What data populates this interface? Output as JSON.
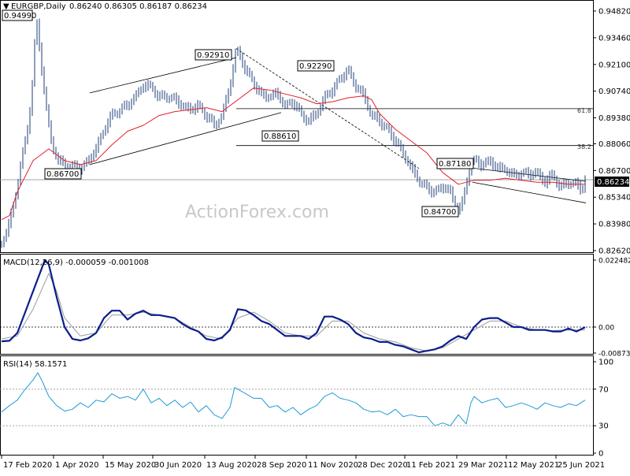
{
  "header": {
    "symbol": "EURGBP,Daily",
    "ohlc": "0.86240 0.86305 0.86187 0.86234"
  },
  "watermark": "ActionForex.com",
  "chart_data": [
    {
      "type": "candlestick",
      "ylim": [
        0.8262,
        0.9482
      ],
      "y_ticks": [
        "0.94820",
        "0.93460",
        "0.92100",
        "0.90740",
        "0.89380",
        "0.88060",
        "0.86700",
        "0.85340",
        "0.83980",
        "0.82620"
      ],
      "x_ticks": [
        "17 Feb 2020",
        "1 Apr 2020",
        "15 May 2020",
        "30 Jun 2020",
        "13 Aug 2020",
        "28 Sep 2020",
        "11 Nov 2020",
        "28 Dec 2020",
        "11 Feb 2021",
        "29 Mar 2021",
        "12 May 2021",
        "25 Jun 2021"
      ],
      "last_price": "0.86234",
      "series": [
        {
          "name": "price",
          "color": "#1f3f7a",
          "x": [
            0,
            8,
            16,
            24,
            32,
            38,
            44,
            48,
            52,
            58,
            64,
            72,
            80,
            90,
            100,
            110,
            120,
            130,
            140,
            150,
            160,
            170,
            180,
            190,
            200,
            210,
            220,
            230,
            240,
            250,
            260,
            270,
            280,
            290,
            298,
            302,
            310,
            320,
            330,
            340,
            350,
            360,
            370,
            380,
            390,
            400,
            410,
            420,
            430,
            440,
            450,
            460,
            470,
            480,
            490,
            500,
            510,
            520,
            530,
            540,
            550,
            560,
            570,
            575,
            580,
            586,
            590,
            596,
            600,
            610,
            620,
            630,
            640,
            650,
            660,
            670,
            680,
            690,
            700,
            710,
            720,
            730,
            737,
            741
          ],
          "y": [
            0.83,
            0.838,
            0.85,
            0.87,
            0.885,
            0.905,
            0.945,
            0.93,
            0.915,
            0.895,
            0.88,
            0.872,
            0.87,
            0.869,
            0.868,
            0.872,
            0.878,
            0.888,
            0.895,
            0.898,
            0.9,
            0.905,
            0.91,
            0.91,
            0.904,
            0.905,
            0.903,
            0.9,
            0.898,
            0.9,
            0.895,
            0.89,
            0.895,
            0.91,
            0.929,
            0.926,
            0.918,
            0.912,
            0.905,
            0.905,
            0.906,
            0.9,
            0.902,
            0.896,
            0.892,
            0.896,
            0.904,
            0.908,
            0.914,
            0.918,
            0.91,
            0.905,
            0.895,
            0.892,
            0.888,
            0.882,
            0.876,
            0.868,
            0.862,
            0.858,
            0.856,
            0.859,
            0.856,
            0.8505,
            0.847,
            0.851,
            0.86,
            0.872,
            0.8718,
            0.87,
            0.872,
            0.868,
            0.868,
            0.864,
            0.866,
            0.865,
            0.866,
            0.861,
            0.865,
            0.858,
            0.861,
            0.86,
            0.857,
            0.8623
          ]
        },
        {
          "name": "",
          "color": "#e0202a",
          "x": [
            0,
            10,
            20,
            40,
            60,
            80,
            100,
            120,
            140,
            160,
            180,
            200,
            220,
            240,
            260,
            280,
            300,
            320,
            340,
            360,
            380,
            400,
            420,
            440,
            460,
            470,
            480,
            500,
            520,
            540,
            560,
            580,
            600,
            620,
            640,
            660,
            680,
            700,
            720,
            741
          ],
          "y": [
            0.842,
            0.844,
            0.856,
            0.872,
            0.878,
            0.872,
            0.87,
            0.872,
            0.88,
            0.887,
            0.89,
            0.895,
            0.897,
            0.898,
            0.899,
            0.897,
            0.903,
            0.909,
            0.908,
            0.906,
            0.904,
            0.901,
            0.902,
            0.904,
            0.905,
            0.903,
            0.896,
            0.888,
            0.882,
            0.876,
            0.866,
            0.86,
            0.862,
            0.862,
            0.863,
            0.862,
            0.861,
            0.861,
            0.86,
            0.86
          ]
        }
      ],
      "annotations": {
        "price_labels": [
          "0.94990",
          "0.92910",
          "0.92290",
          "0.88610",
          "0.86700",
          "0.87180",
          "0.84700"
        ],
        "fib_labels": [
          "61.8",
          "38.2"
        ],
        "fib_levels": [
          0.8985,
          0.8797
        ],
        "support_level": 0.8623
      }
    },
    {
      "type": "line",
      "title": "MACD(12,26,9) -0.000059 -0.001008",
      "ylim": [
        -0.00874,
        0.02248
      ],
      "y_ticks": [
        "0.022482",
        "0.00",
        "-0.008736"
      ],
      "series": [
        {
          "name": "macd",
          "color": "#0b1d8a",
          "x": [
            0,
            10,
            20,
            30,
            40,
            50,
            55,
            60,
            70,
            80,
            90,
            100,
            110,
            120,
            130,
            140,
            150,
            160,
            170,
            180,
            190,
            200,
            210,
            220,
            230,
            240,
            250,
            260,
            270,
            280,
            290,
            300,
            310,
            320,
            330,
            340,
            350,
            360,
            370,
            380,
            390,
            400,
            410,
            420,
            430,
            440,
            450,
            460,
            470,
            480,
            490,
            500,
            510,
            520,
            530,
            540,
            550,
            560,
            570,
            580,
            590,
            600,
            610,
            620,
            630,
            640,
            650,
            660,
            670,
            680,
            690,
            700,
            710,
            720,
            730,
            741
          ],
          "y": [
            -0.0048,
            -0.0046,
            -0.002,
            0.005,
            0.012,
            0.019,
            0.0225,
            0.021,
            0.01,
            0.0,
            -0.004,
            -0.0045,
            -0.0038,
            -0.002,
            0.003,
            0.0055,
            0.0055,
            0.0025,
            0.0045,
            0.0055,
            0.004,
            0.004,
            0.0035,
            0.003,
            0.001,
            -0.0005,
            -0.0015,
            -0.004,
            -0.0045,
            -0.0035,
            -0.001,
            0.006,
            0.0056,
            0.004,
            0.002,
            0.001,
            -0.001,
            -0.003,
            -0.003,
            -0.003,
            -0.004,
            -0.002,
            0.0035,
            0.0035,
            0.0025,
            0.001,
            -0.002,
            -0.0035,
            -0.004,
            -0.005,
            -0.005,
            -0.006,
            -0.0065,
            -0.0075,
            -0.0085,
            -0.008,
            -0.0075,
            -0.0065,
            -0.0045,
            -0.003,
            -0.004,
            0.0,
            0.0025,
            0.003,
            0.003,
            0.0015,
            0.0,
            0.0,
            -0.001,
            -0.001,
            -0.001,
            -0.0015,
            -0.0015,
            -0.0005,
            -0.0015,
            -0.0001
          ]
        },
        {
          "name": "signal",
          "color": "#9a9a9a",
          "x": [
            0,
            20,
            40,
            60,
            70,
            80,
            100,
            120,
            140,
            160,
            180,
            200,
            220,
            240,
            260,
            280,
            300,
            320,
            340,
            360,
            380,
            400,
            420,
            440,
            460,
            480,
            500,
            520,
            540,
            560,
            580,
            600,
            620,
            640,
            660,
            680,
            700,
            720,
            741
          ],
          "y": [
            -0.004,
            -0.003,
            0.006,
            0.018,
            0.012,
            0.003,
            -0.003,
            -0.002,
            0.004,
            0.004,
            0.005,
            0.004,
            0.003,
            0.0,
            -0.003,
            -0.004,
            0.003,
            0.005,
            0.002,
            -0.002,
            -0.003,
            -0.003,
            0.002,
            0.002,
            -0.002,
            -0.004,
            -0.005,
            -0.007,
            -0.008,
            -0.007,
            -0.004,
            -0.001,
            0.002,
            0.002,
            0.0,
            -0.001,
            -0.0012,
            -0.001,
            -0.001
          ]
        }
      ]
    },
    {
      "type": "line",
      "title": "RSI(14) 58.1571",
      "ylim": [
        0,
        100
      ],
      "y_ticks": [
        "100",
        "70",
        "30",
        "0"
      ],
      "levels": [
        70,
        30
      ],
      "series": [
        {
          "name": "rsi",
          "color": "#1f9ad6",
          "x": [
            0,
            10,
            20,
            30,
            40,
            46,
            52,
            60,
            70,
            80,
            90,
            100,
            110,
            120,
            130,
            140,
            150,
            160,
            170,
            180,
            190,
            200,
            210,
            220,
            230,
            240,
            250,
            260,
            270,
            280,
            290,
            296,
            300,
            310,
            320,
            330,
            340,
            350,
            360,
            370,
            380,
            390,
            400,
            410,
            420,
            430,
            440,
            450,
            460,
            470,
            480,
            490,
            500,
            510,
            520,
            530,
            540,
            550,
            560,
            570,
            580,
            590,
            596,
            600,
            610,
            620,
            630,
            640,
            650,
            660,
            670,
            680,
            690,
            700,
            710,
            720,
            730,
            741
          ],
          "y": [
            45,
            52,
            58,
            70,
            80,
            88,
            78,
            62,
            52,
            46,
            48,
            55,
            50,
            58,
            56,
            65,
            60,
            62,
            58,
            70,
            55,
            60,
            52,
            58,
            50,
            56,
            45,
            52,
            42,
            38,
            50,
            72,
            70,
            65,
            60,
            60,
            50,
            52,
            45,
            50,
            42,
            48,
            52,
            62,
            66,
            60,
            58,
            55,
            48,
            45,
            46,
            42,
            48,
            40,
            42,
            40,
            40,
            30,
            33,
            30,
            42,
            32,
            55,
            62,
            55,
            58,
            60,
            50,
            52,
            55,
            52,
            48,
            55,
            52,
            50,
            54,
            52,
            58
          ]
        }
      ]
    }
  ]
}
